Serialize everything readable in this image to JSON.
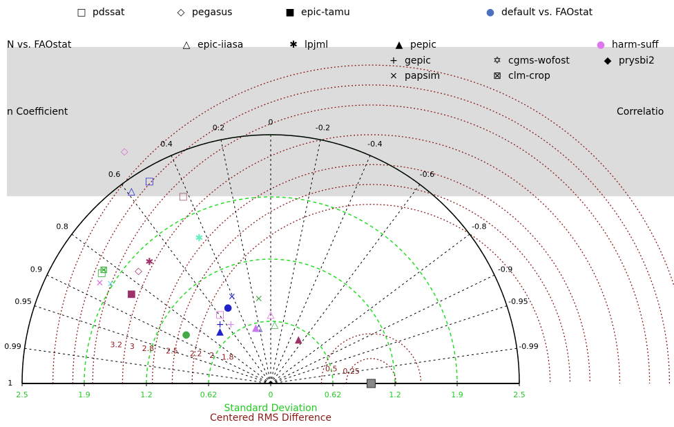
{
  "chart_data": {
    "type": "taylor",
    "x_label": "Standard Deviation",
    "rms_label": "Centered RMS Difference",
    "corr_label_left": "n Coefficient",
    "corr_label_right": "Correlatio",
    "legend_fragments": [
      "N vs. FAOstat"
    ],
    "xlim": [
      -2.5,
      2.5
    ],
    "ylim": [
      0,
      2.5
    ],
    "xticks": [
      {
        "value": -2.5,
        "label": "2.5"
      },
      {
        "value": -1.875,
        "label": "1.9"
      },
      {
        "value": -1.25,
        "label": "1.2"
      },
      {
        "value": -0.625,
        "label": "0.62"
      },
      0,
      {
        "value": 0.625,
        "label": "0.62"
      },
      {
        "value": 1.25,
        "label": "1.2"
      },
      {
        "value": 1.875,
        "label": "1.9"
      },
      2.5
    ],
    "corr_ticks": [
      1,
      0.99,
      0.95,
      0.9,
      0.8,
      0.6,
      0.4,
      0.2,
      0,
      -0.2,
      -0.4,
      -0.6,
      -0.8,
      -0.9,
      -0.95,
      -0.99
    ],
    "rms_ticks": [
      0.25,
      0.5,
      1.8,
      2,
      2.2,
      2.5,
      2.8,
      3,
      3.2
    ],
    "reference_std": 1.01,
    "series": [
      {
        "name": "pdssat",
        "marker": "□",
        "color": "#000000",
        "x": [
          -1.22,
          -0.88,
          -0.51,
          -1.7
        ],
        "values": [
          2.03,
          1.88,
          0.69,
          1.11
        ],
        "point_colors": [
          "#2222cc",
          "#a0506a",
          "#dd66dd",
          "#22aa22"
        ]
      },
      {
        "name": "pegasus",
        "marker": "◇",
        "color": "#000000",
        "x": [
          -1.47,
          -1.33
        ],
        "values": [
          2.33,
          1.13
        ],
        "point_colors": [
          "#dd66dd",
          "#a0306a"
        ]
      },
      {
        "name": "epic-tamu",
        "marker": "■",
        "color": "#000000",
        "x": [
          -1.4
        ],
        "values": [
          0.9
        ],
        "point_colors": [
          "#a0306a"
        ]
      },
      {
        "name": "default vs. FAOstat",
        "marker": "●",
        "color": "#4a70c0",
        "x": [
          -0.43,
          -0.85
        ],
        "values": [
          0.76,
          0.49
        ],
        "point_colors": [
          "#2222cc",
          "#44aa44"
        ]
      },
      {
        "name": "epic-iiasa",
        "marker": "△",
        "color": "#000000",
        "x": [
          -1.4,
          -0.12,
          0.04,
          0
        ],
        "values": [
          1.93,
          0.56,
          0.59,
          0.69
        ],
        "point_colors": [
          "#2222cc",
          "#2222cc",
          "#44aa44",
          "#dd66dd"
        ]
      },
      {
        "name": "lpjml",
        "marker": "✱",
        "color": "#000000",
        "x": [
          -0.72,
          -1.22
        ],
        "values": [
          1.46,
          1.22
        ],
        "point_colors": [
          "#66eebb",
          "#a0306a"
        ]
      },
      {
        "name": "pepic",
        "marker": "▲",
        "color": "#000000",
        "x": [
          -0.51,
          -0.15,
          0.28
        ],
        "values": [
          0.52,
          0.56,
          0.44
        ],
        "point_colors": [
          "#2222cc",
          "#cc77ee",
          "#a0306a"
        ]
      },
      {
        "name": "harm-suff",
        "marker": "●",
        "color": "#dd77ee",
        "x": [],
        "values": [],
        "point_colors": []
      },
      {
        "name": "gepic",
        "marker": "+",
        "color": "#000000",
        "x": [
          -0.51,
          -0.4
        ],
        "values": [
          0.59,
          0.59
        ],
        "point_colors": [
          "#2222cc",
          "#dd88ee"
        ]
      },
      {
        "name": "cgms-wofost",
        "marker": "✡",
        "color": "#000000",
        "x": [],
        "values": [],
        "point_colors": []
      },
      {
        "name": "prysbi2",
        "marker": "◆",
        "color": "#000000",
        "x": [],
        "values": [],
        "point_colors": []
      },
      {
        "name": "papsim",
        "marker": "×",
        "color": "#000000",
        "x": [
          -1.72,
          -1.61,
          -0.39,
          -0.12
        ],
        "values": [
          1.01,
          1.0,
          0.87,
          0.85
        ],
        "point_colors": [
          "#dd66dd",
          "#66dddd",
          "#2222cc",
          "#44aa44"
        ]
      },
      {
        "name": "clm-crop",
        "marker": "⊠",
        "color": "#000000",
        "x": [
          -1.68
        ],
        "values": [
          1.14
        ],
        "point_colors": [
          "#22aa22"
        ]
      }
    ]
  }
}
